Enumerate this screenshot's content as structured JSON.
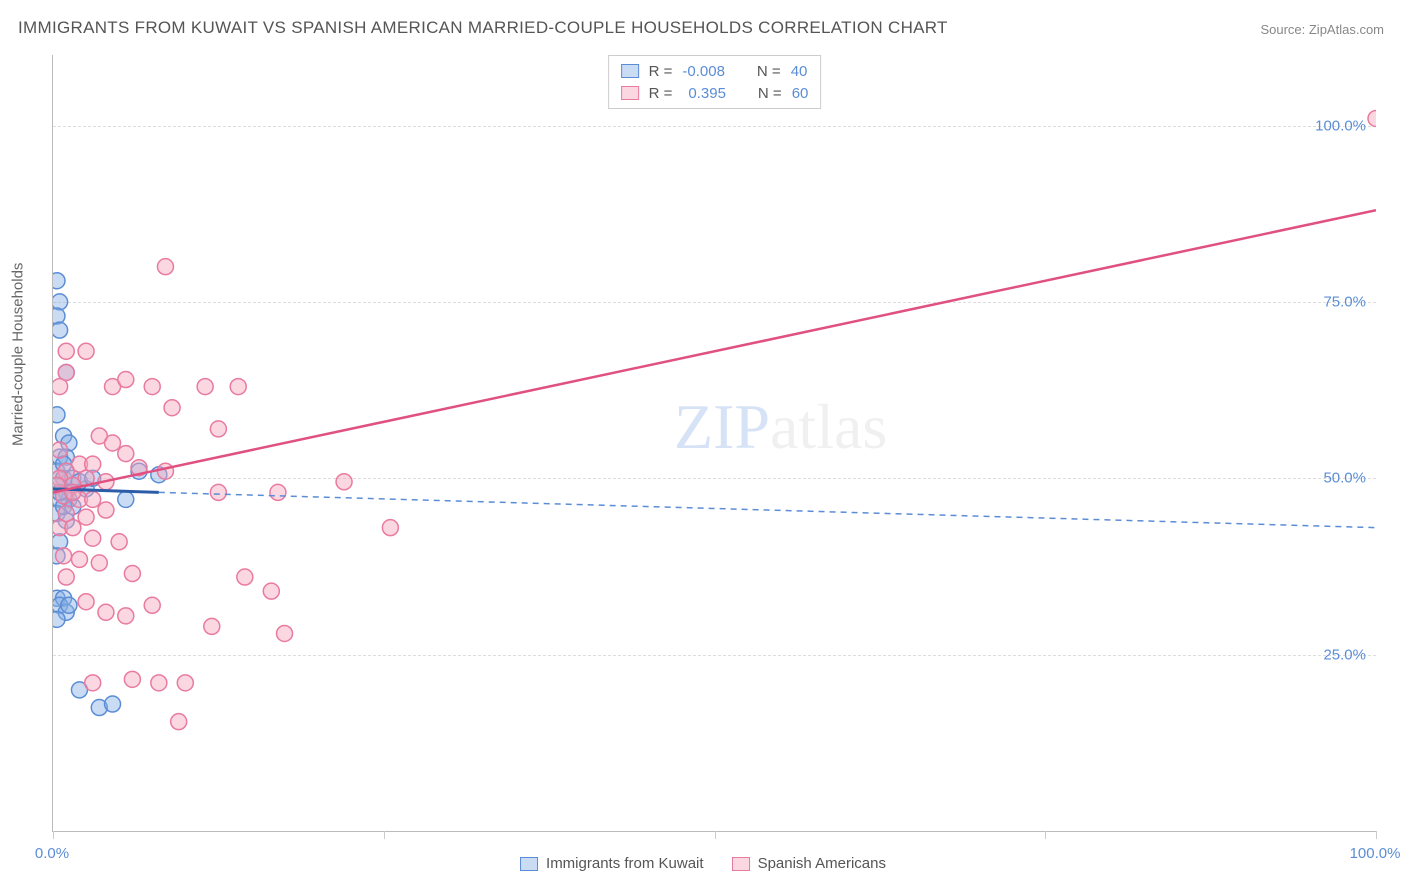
{
  "title": "IMMIGRANTS FROM KUWAIT VS SPANISH AMERICAN MARRIED-COUPLE HOUSEHOLDS CORRELATION CHART",
  "source": "Source: ZipAtlas.com",
  "y_axis_label": "Married-couple Households",
  "watermark_a": "ZIP",
  "watermark_b": "atlas",
  "chart": {
    "type": "scatter",
    "xlim": [
      0,
      100
    ],
    "ylim": [
      0,
      110
    ],
    "x_ticks": [
      0,
      25,
      50,
      75,
      100
    ],
    "x_tick_labels": [
      "0.0%",
      "",
      "",
      "",
      "100.0%"
    ],
    "y_gridlines": [
      25,
      50,
      75,
      100
    ],
    "y_tick_labels": [
      "25.0%",
      "50.0%",
      "75.0%",
      "100.0%"
    ],
    "background_color": "#ffffff",
    "grid_color": "#dddddd",
    "axis_color": "#bbbbbb",
    "marker_radius": 8,
    "marker_stroke_width": 1.5,
    "series": [
      {
        "name": "Immigrants from Kuwait",
        "fill": "rgba(137,178,228,0.45)",
        "stroke": "#5b8dd6",
        "R": "-0.008",
        "N": "40",
        "trend": {
          "x1": 0,
          "y1": 48.5,
          "x2": 8,
          "y2": 48.0,
          "solid_color": "#2b5ca8",
          "solid_width": 3,
          "dash_x1": 8,
          "dash_y1": 48.0,
          "dash_x2": 100,
          "dash_y2": 43.0,
          "dash_color": "#5b8dd6",
          "dash_width": 1.5,
          "dash": "6 5"
        },
        "points": [
          [
            0.3,
            78
          ],
          [
            0.5,
            75
          ],
          [
            0.3,
            73
          ],
          [
            0.5,
            71
          ],
          [
            1.0,
            65
          ],
          [
            0.3,
            59
          ],
          [
            0.8,
            56
          ],
          [
            1.2,
            55
          ],
          [
            0.5,
            53
          ],
          [
            1.0,
            53
          ],
          [
            0.3,
            51
          ],
          [
            0.8,
            50
          ],
          [
            1.5,
            50
          ],
          [
            0.3,
            49
          ],
          [
            1.0,
            48
          ],
          [
            2.5,
            48.5
          ],
          [
            5.5,
            47
          ],
          [
            1.2,
            47
          ],
          [
            0.5,
            47
          ],
          [
            0.3,
            45
          ],
          [
            1.0,
            44
          ],
          [
            0.8,
            46
          ],
          [
            2.0,
            49.5
          ],
          [
            3.0,
            50
          ],
          [
            6.5,
            51
          ],
          [
            8.0,
            50.5
          ],
          [
            0.5,
            41
          ],
          [
            0.3,
            39
          ],
          [
            0.3,
            33
          ],
          [
            0.8,
            33
          ],
          [
            0.5,
            32
          ],
          [
            1.0,
            31
          ],
          [
            1.2,
            32
          ],
          [
            0.3,
            30
          ],
          [
            2.0,
            20
          ],
          [
            3.5,
            17.5
          ],
          [
            4.5,
            18
          ],
          [
            0.5,
            48
          ],
          [
            1.5,
            46
          ],
          [
            0.8,
            52
          ]
        ]
      },
      {
        "name": "Spanish Americans",
        "fill": "rgba(244,166,188,0.45)",
        "stroke": "#e97aa0",
        "R": "0.395",
        "N": "60",
        "trend": {
          "x1": 0,
          "y1": 48.0,
          "x2": 100,
          "y2": 88.0,
          "solid_color": "#e05080",
          "solid_width": 2.5
        },
        "points": [
          [
            100,
            101
          ],
          [
            8.5,
            80
          ],
          [
            2.5,
            68
          ],
          [
            1.0,
            68
          ],
          [
            1.0,
            65
          ],
          [
            0.5,
            63
          ],
          [
            4.5,
            63
          ],
          [
            5.5,
            64
          ],
          [
            7.5,
            63
          ],
          [
            11.5,
            63
          ],
          [
            14.0,
            63
          ],
          [
            9.0,
            60
          ],
          [
            3.5,
            56
          ],
          [
            4.5,
            55
          ],
          [
            5.5,
            53.5
          ],
          [
            12.5,
            57
          ],
          [
            2.0,
            52
          ],
          [
            3.0,
            52
          ],
          [
            6.5,
            51.5
          ],
          [
            8.5,
            51
          ],
          [
            1.0,
            51
          ],
          [
            0.5,
            50
          ],
          [
            2.5,
            50
          ],
          [
            4.0,
            49.5
          ],
          [
            0.3,
            49
          ],
          [
            1.5,
            49
          ],
          [
            0.8,
            47.5
          ],
          [
            2.0,
            47
          ],
          [
            3.0,
            47
          ],
          [
            12.5,
            48
          ],
          [
            17.0,
            48
          ],
          [
            22.0,
            49.5
          ],
          [
            1.0,
            45
          ],
          [
            2.5,
            44.5
          ],
          [
            4.0,
            45.5
          ],
          [
            25.5,
            43
          ],
          [
            0.5,
            43
          ],
          [
            1.5,
            43
          ],
          [
            3.0,
            41.5
          ],
          [
            5.0,
            41
          ],
          [
            0.8,
            39
          ],
          [
            2.0,
            38.5
          ],
          [
            3.5,
            38
          ],
          [
            6.0,
            36.5
          ],
          [
            1.0,
            36
          ],
          [
            14.5,
            36
          ],
          [
            16.5,
            34
          ],
          [
            2.5,
            32.5
          ],
          [
            4.0,
            31
          ],
          [
            5.5,
            30.5
          ],
          [
            7.5,
            32
          ],
          [
            12.0,
            29
          ],
          [
            17.5,
            28
          ],
          [
            3.0,
            21
          ],
          [
            6.0,
            21.5
          ],
          [
            8.0,
            21
          ],
          [
            10.0,
            21
          ],
          [
            9.5,
            15.5
          ],
          [
            1.5,
            48
          ],
          [
            0.5,
            54
          ]
        ]
      }
    ]
  },
  "legend_top": {
    "R_label": "R =",
    "N_label": "N ="
  },
  "legend_bottom_labels": [
    "Immigrants from Kuwait",
    "Spanish Americans"
  ],
  "colors": {
    "tick_text": "#5b8dd6",
    "label_text": "#666666",
    "title_text": "#555555"
  }
}
